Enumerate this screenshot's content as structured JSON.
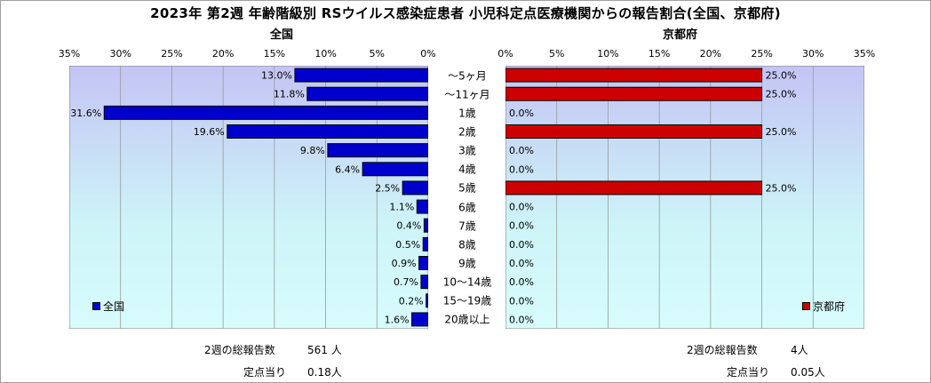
{
  "title": "2023年 第2週 年齢階級別 RSウイルス感染症患者 小児科定点医療機関からの報告割合(全国、京都府)",
  "chart_data": {
    "type": "bar",
    "orientation": "horizontal",
    "categories": [
      "～5ヶ月",
      "～11ヶ月",
      "1歳",
      "2歳",
      "3歳",
      "4歳",
      "5歳",
      "6歳",
      "7歳",
      "8歳",
      "9歳",
      "10～14歳",
      "15～19歳",
      "20歳以上"
    ],
    "xlim": [
      0,
      35
    ],
    "ticks": [
      "35%",
      "30%",
      "25%",
      "20%",
      "15%",
      "10%",
      "5%",
      "0%"
    ],
    "ticks_right": [
      "0%",
      "5%",
      "10%",
      "15%",
      "20%",
      "25%",
      "30%",
      "35%"
    ],
    "grid": true,
    "series": [
      {
        "name": "全国",
        "panel_title": "全国",
        "color": "#0000CC",
        "legend_position": "bottom-left",
        "values": [
          13.0,
          11.8,
          31.6,
          19.6,
          9.8,
          6.4,
          2.5,
          1.1,
          0.4,
          0.5,
          0.9,
          0.7,
          0.2,
          1.6
        ],
        "labels": [
          "13.0%",
          "11.8%",
          "31.6%",
          "19.6%",
          "9.8%",
          "6.4%",
          "2.5%",
          "1.1%",
          "0.4%",
          "0.5%",
          "0.9%",
          "0.7%",
          "0.2%",
          "1.6%"
        ]
      },
      {
        "name": "京都府",
        "panel_title": "京都府",
        "color": "#CC0000",
        "legend_position": "bottom-right",
        "values": [
          25.0,
          25.0,
          0.0,
          25.0,
          0.0,
          0.0,
          25.0,
          0.0,
          0.0,
          0.0,
          0.0,
          0.0,
          0.0,
          0.0
        ],
        "labels": [
          "25.0%",
          "25.0%",
          "0.0%",
          "25.0%",
          "0.0%",
          "0.0%",
          "25.0%",
          "0.0%",
          "0.0%",
          "0.0%",
          "0.0%",
          "0.0%",
          "0.0%",
          "0.0%"
        ]
      }
    ]
  },
  "footer": {
    "left": {
      "total_label": "2週の総報告数",
      "total_value": "561 人",
      "per_label": "定点当り",
      "per_value": "0.18人"
    },
    "right": {
      "total_label": "2週の総報告数",
      "total_value": "4人",
      "per_label": "定点当り",
      "per_value": "0.05人"
    }
  }
}
